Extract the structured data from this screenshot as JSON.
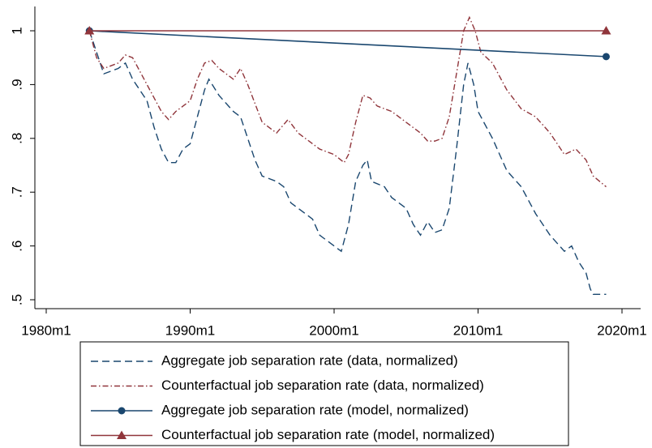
{
  "chart_data": {
    "type": "line",
    "xlim": [
      1980,
      2020
    ],
    "ylim": [
      0.5,
      1
    ],
    "xticks": [
      {
        "value": 1980,
        "label": "1980m1"
      },
      {
        "value": 1990,
        "label": "1990m1"
      },
      {
        "value": 2000,
        "label": "2000m1"
      },
      {
        "value": 2010,
        "label": "2010m1"
      },
      {
        "value": 2020,
        "label": "2020m1"
      }
    ],
    "yticks": [
      {
        "value": 0.5,
        "label": ".5"
      },
      {
        "value": 0.6,
        "label": ".6"
      },
      {
        "value": 0.7,
        "label": ".7"
      },
      {
        "value": 0.8,
        "label": ".8"
      },
      {
        "value": 0.9,
        "label": ".9"
      },
      1
    ],
    "series": [
      {
        "name": "Aggregate job separation rate (data, normalized)",
        "color": "#1a476f",
        "style": "dash",
        "x": [
          1983,
          1983.5,
          1984,
          1985,
          1985.5,
          1986,
          1987,
          1987.5,
          1988,
          1988.5,
          1989,
          1989.5,
          1990,
          1990.5,
          1991,
          1991.3,
          1992,
          1993,
          1993.5,
          1994,
          1994.5,
          1995,
          1996,
          1996.5,
          1997,
          1998,
          1998.5,
          1999,
          2000,
          2000.5,
          2001,
          2001.5,
          2002,
          2002.3,
          2002.6,
          2003.5,
          2004,
          2005,
          2005.5,
          2006,
          2006.5,
          2007,
          2007.5,
          2008,
          2008.5,
          2009,
          2009.3,
          2009.7,
          2010,
          2011,
          2012,
          2013,
          2014,
          2015,
          2016,
          2016.5,
          2017,
          2017.5,
          2017.8,
          2018,
          2018.9
        ],
        "values": [
          1.0,
          0.96,
          0.92,
          0.93,
          0.94,
          0.91,
          0.87,
          0.82,
          0.78,
          0.755,
          0.755,
          0.78,
          0.79,
          0.84,
          0.89,
          0.91,
          0.88,
          0.85,
          0.84,
          0.8,
          0.76,
          0.73,
          0.72,
          0.71,
          0.68,
          0.66,
          0.65,
          0.62,
          0.6,
          0.59,
          0.64,
          0.72,
          0.75,
          0.76,
          0.72,
          0.71,
          0.69,
          0.67,
          0.64,
          0.62,
          0.645,
          0.625,
          0.63,
          0.67,
          0.78,
          0.9,
          0.94,
          0.9,
          0.85,
          0.8,
          0.74,
          0.71,
          0.66,
          0.62,
          0.59,
          0.6,
          0.57,
          0.55,
          0.52,
          0.51,
          0.51
        ]
      },
      {
        "name": "Counterfactual job separation rate (data, normalized)",
        "color": "#90353b",
        "style": "dashdot",
        "x": [
          1983,
          1983.5,
          1984,
          1985,
          1985.5,
          1986,
          1987,
          1988,
          1988.5,
          1989,
          1990,
          1990.5,
          1991,
          1991.5,
          1992,
          1993,
          1993.5,
          1994,
          1995,
          1996,
          1996.8,
          1997.5,
          1998.5,
          1999,
          2000,
          2000.7,
          2001,
          2001.5,
          2002,
          2002.5,
          2003,
          2004,
          2005,
          2006,
          2006.5,
          2007,
          2007.5,
          2008,
          2008.5,
          2009,
          2009.4,
          2009.8,
          2010.2,
          2011,
          2012,
          2013,
          2014,
          2015,
          2016,
          2016.8,
          2017.5,
          2018,
          2018.9
        ],
        "values": [
          1.0,
          0.95,
          0.93,
          0.94,
          0.955,
          0.95,
          0.9,
          0.85,
          0.835,
          0.85,
          0.87,
          0.91,
          0.94,
          0.945,
          0.93,
          0.91,
          0.93,
          0.9,
          0.83,
          0.81,
          0.835,
          0.81,
          0.79,
          0.78,
          0.77,
          0.755,
          0.77,
          0.83,
          0.88,
          0.875,
          0.86,
          0.85,
          0.83,
          0.81,
          0.795,
          0.795,
          0.8,
          0.84,
          0.92,
          1.0,
          1.025,
          1.0,
          0.96,
          0.94,
          0.89,
          0.855,
          0.84,
          0.81,
          0.77,
          0.78,
          0.76,
          0.73,
          0.71
        ]
      },
      {
        "name": "Aggregate job separation rate (model, normalized)",
        "color": "#1a476f",
        "style": "solid",
        "marker": "circle",
        "x": [
          1983,
          2018.9
        ],
        "values": [
          1.0,
          0.952
        ]
      },
      {
        "name": "Counterfactual job separation rate (model, normalized)",
        "color": "#90353b",
        "style": "solid",
        "marker": "triangle",
        "x": [
          1983,
          2018.9
        ],
        "values": [
          1.0,
          1.0
        ]
      }
    ]
  }
}
